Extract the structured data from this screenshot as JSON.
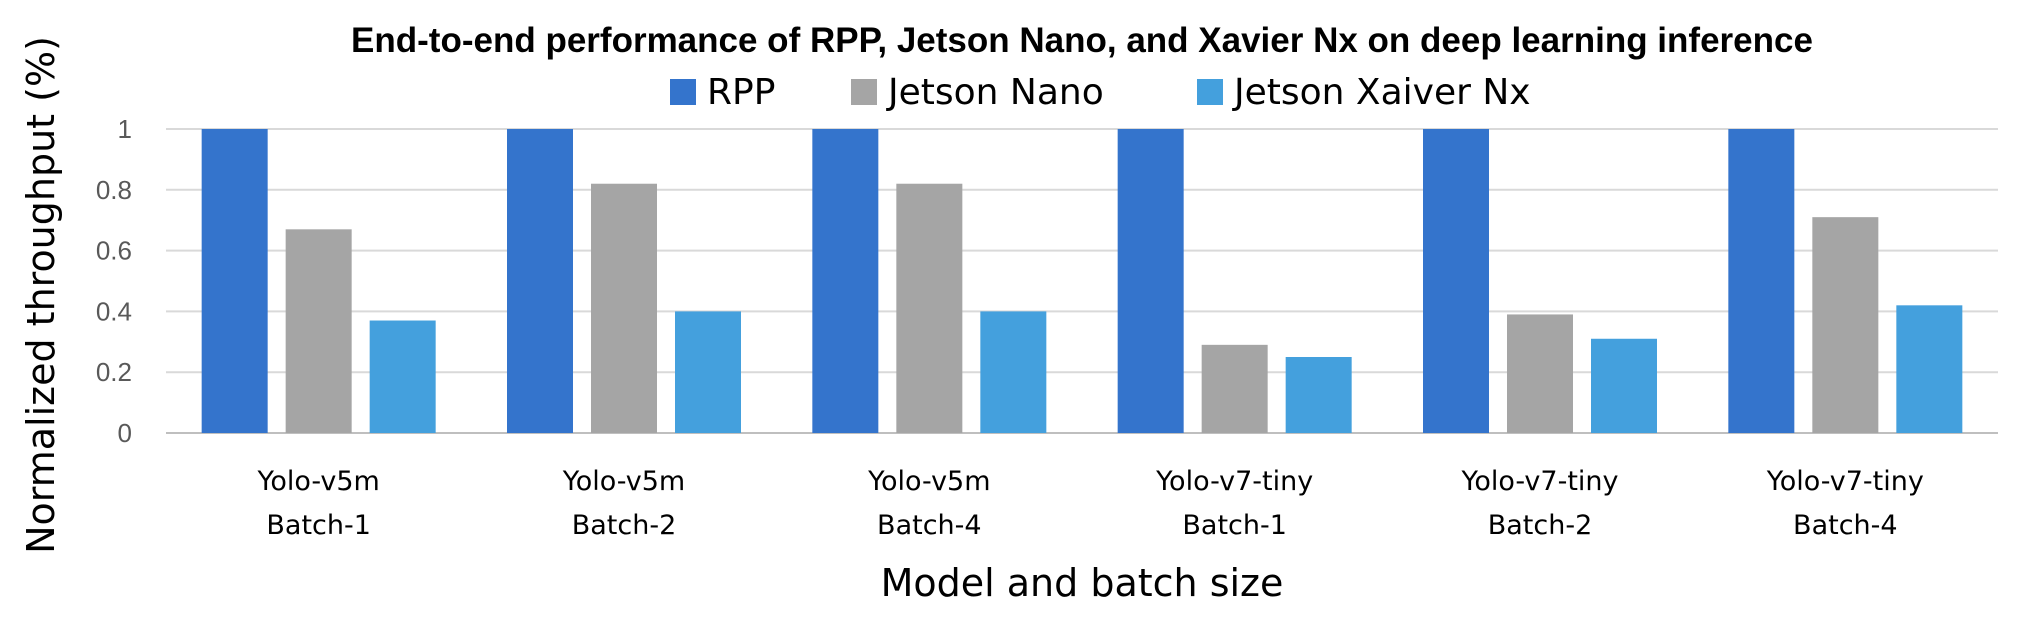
{
  "chart_data": {
    "type": "bar",
    "title": "End-to-end performance of RPP, Jetson Nano, and Xavier Nx on deep learning inference",
    "xlabel": "Model and batch size",
    "ylabel": "Normalized throughput (%)",
    "ylim": [
      0,
      1
    ],
    "yticks": [
      "0",
      "0.2",
      "0.4",
      "0.6",
      "0.8",
      "1"
    ],
    "grid": true,
    "legend_position": "top",
    "categories": [
      [
        "Yolo-v5m",
        "Batch-1"
      ],
      [
        "Yolo-v5m",
        "Batch-2"
      ],
      [
        "Yolo-v5m",
        "Batch-4"
      ],
      [
        "Yolo-v7-tiny",
        "Batch-1"
      ],
      [
        "Yolo-v7-tiny",
        "Batch-2"
      ],
      [
        "Yolo-v7-tiny",
        "Batch-4"
      ]
    ],
    "series": [
      {
        "name": "RPP",
        "color": "#3474CC",
        "values": [
          1,
          1,
          1,
          1,
          1,
          1
        ]
      },
      {
        "name": "Jetson Nano",
        "color": "#A5A5A5",
        "values": [
          0.67,
          0.82,
          0.82,
          0.29,
          0.39,
          0.71
        ]
      },
      {
        "name": "Jetson Xaiver Nx",
        "color": "#44A0DD",
        "values": [
          0.37,
          0.4,
          0.4,
          0.25,
          0.31,
          0.42
        ]
      }
    ]
  }
}
